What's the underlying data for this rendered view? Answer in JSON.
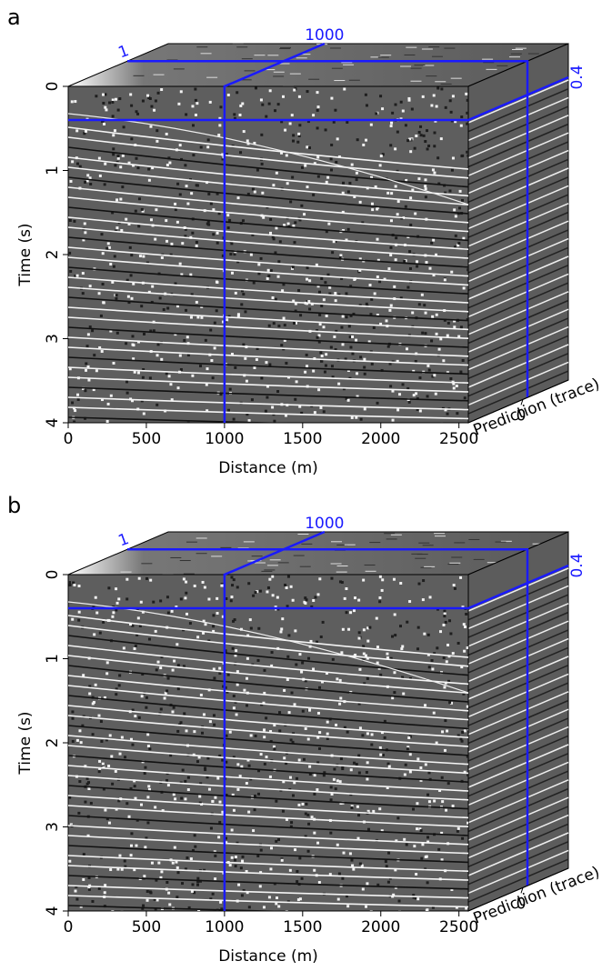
{
  "chart_data": [
    {
      "type": "cube",
      "panel_label": "a",
      "xlabel": "Distance (m)",
      "ylabel": "Time (s)",
      "zlabel": "Prediction (trace)",
      "xlim": [
        0,
        2560
      ],
      "xticks": [
        0,
        500,
        1000,
        1500,
        2000,
        2500
      ],
      "ylim": [
        0,
        4
      ],
      "yticks": [
        0,
        1,
        2,
        3,
        4
      ],
      "zlim": [
        -12,
        10
      ],
      "zticks": [
        0
      ],
      "x_slice": 1000,
      "y_slice": 0.4,
      "z_slice": 1,
      "slice_color": "#1a1aff"
    },
    {
      "type": "cube",
      "panel_label": "b",
      "xlabel": "Distance (m)",
      "ylabel": "Time (s)",
      "zlabel": "Prediction (trace)",
      "xlim": [
        0,
        2560
      ],
      "xticks": [
        0,
        500,
        1000,
        1500,
        2000,
        2500
      ],
      "ylim": [
        0,
        4
      ],
      "yticks": [
        0,
        1,
        2,
        3,
        4
      ],
      "zlim": [
        -12,
        10
      ],
      "zticks": [
        0
      ],
      "x_slice": 1000,
      "y_slice": 0.4,
      "z_slice": 1,
      "slice_color": "#1a1aff"
    }
  ]
}
